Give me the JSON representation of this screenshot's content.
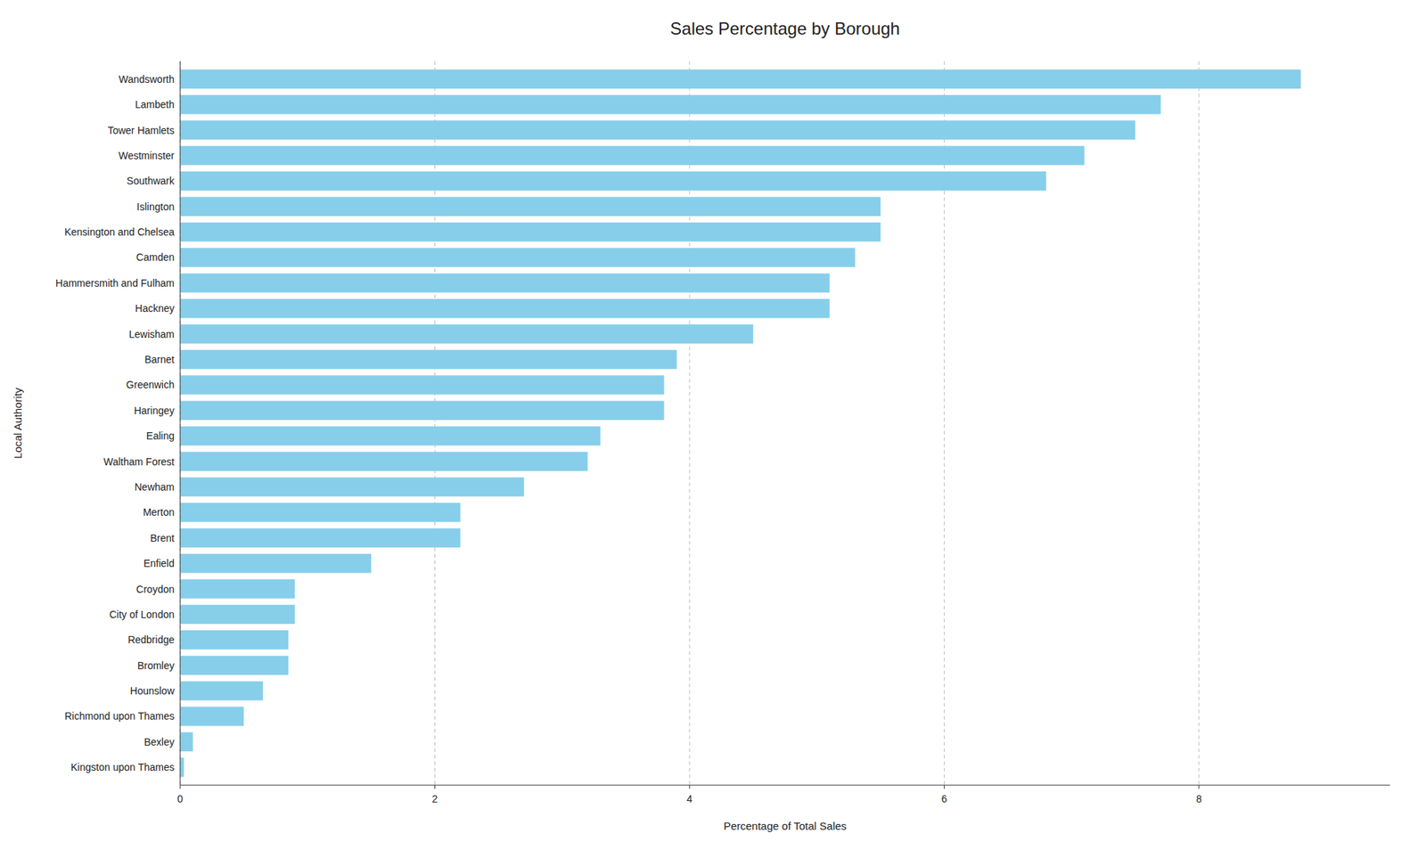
{
  "chart_data": {
    "type": "bar",
    "orientation": "horizontal",
    "title": "Sales Percentage by Borough",
    "xlabel": "Percentage of Total Sales",
    "ylabel": "Local Authority",
    "categories": [
      "Wandsworth",
      "Lambeth",
      "Tower Hamlets",
      "Westminster",
      "Southwark",
      "Islington",
      "Kensington and Chelsea",
      "Camden",
      "Hammersmith and Fulham",
      "Hackney",
      "Lewisham",
      "Barnet",
      "Greenwich",
      "Haringey",
      "Ealing",
      "Waltham Forest",
      "Newham",
      "Merton",
      "Brent",
      "Enfield",
      "Croydon",
      "City of London",
      "Redbridge",
      "Bromley",
      "Hounslow",
      "Richmond upon Thames",
      "Bexley",
      "Kingston upon Thames"
    ],
    "values": [
      8.8,
      7.7,
      7.5,
      7.1,
      6.8,
      5.5,
      5.5,
      5.3,
      5.1,
      5.1,
      4.5,
      3.9,
      3.8,
      3.8,
      3.3,
      3.2,
      2.7,
      2.2,
      2.2,
      1.5,
      0.9,
      0.9,
      0.85,
      0.85,
      0.65,
      0.5,
      0.1,
      0.03
    ],
    "color": "#87CEEB",
    "xlim": [
      0,
      9.5
    ],
    "xticks": [
      0,
      2,
      4,
      6,
      8
    ],
    "grid": true
  }
}
